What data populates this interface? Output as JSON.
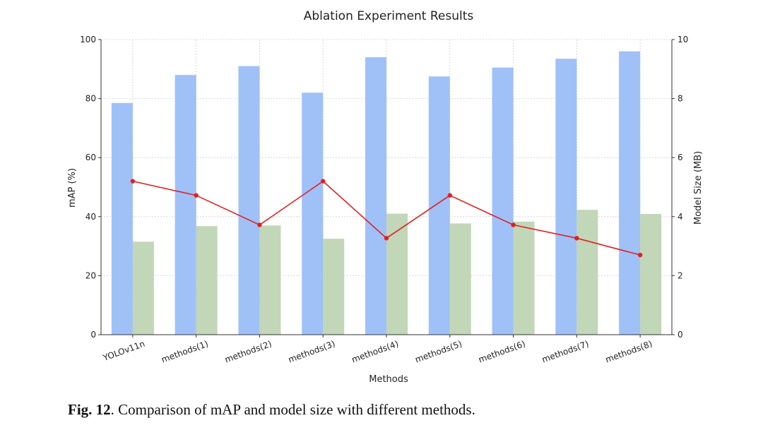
{
  "chart_data": {
    "type": "bar",
    "title": "Ablation Experiment Results",
    "xlabel": "Methods",
    "ylabel": "mAP (%)",
    "y2label": "Model Size (MB)",
    "categories": [
      "YOLOv11n",
      "methods(1)",
      "methods(2)",
      "methods(3)",
      "methods(4)",
      "methods(5)",
      "methods(6)",
      "methods(7)",
      "methods(8)"
    ],
    "ylim": [
      0,
      100
    ],
    "y2lim": [
      0,
      10
    ],
    "yticks": [
      "0",
      "20",
      "40",
      "60",
      "80",
      "100"
    ],
    "y2ticks": [
      "0",
      "2",
      "4",
      "6",
      "8",
      "10"
    ],
    "grid": true,
    "series": [
      {
        "axis": "left",
        "kind": "bar",
        "color": "#a0c0f8",
        "values": [
          78.5,
          88.0,
          91.0,
          82.0,
          94.0,
          87.5,
          90.5,
          93.5,
          96.0
        ]
      },
      {
        "axis": "right",
        "kind": "bar",
        "color": "#c2d6b8",
        "values": [
          3.15,
          3.68,
          3.7,
          3.25,
          4.1,
          3.77,
          3.83,
          4.23,
          4.09
        ]
      },
      {
        "axis": "right",
        "kind": "line",
        "color": "#e02020",
        "values": [
          5.2,
          4.72,
          3.72,
          5.2,
          3.27,
          4.72,
          3.72,
          3.27,
          2.7
        ]
      }
    ]
  },
  "caption": {
    "label": "Fig. 12",
    "text": ".  Comparison of mAP and model size with different methods."
  }
}
